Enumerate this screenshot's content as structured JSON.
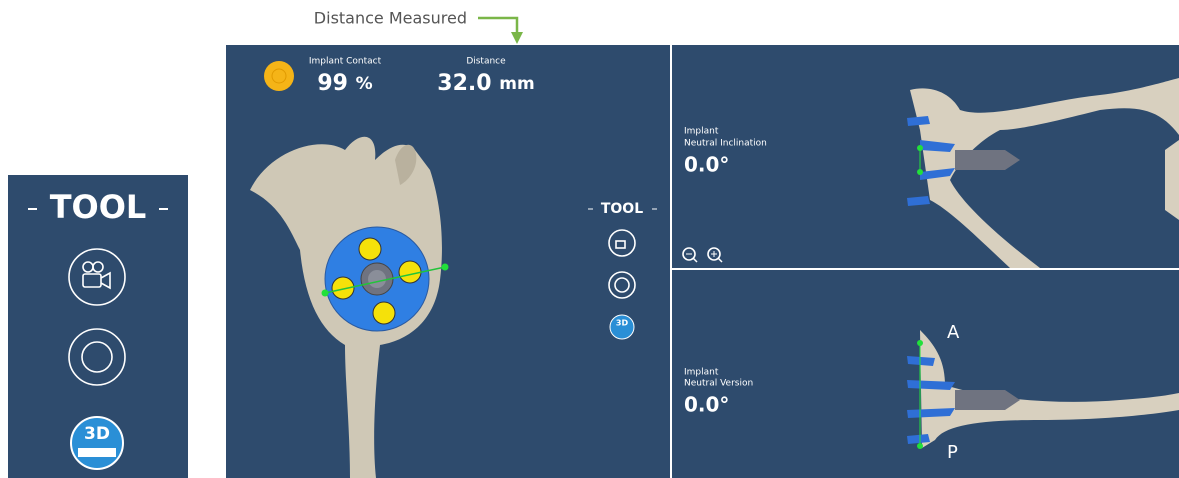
{
  "annotation": {
    "label": "Distance Measured"
  },
  "tool_panel": {
    "title": "TOOL"
  },
  "main_view": {
    "implant_contact": {
      "label": "Implant Contact",
      "value": "99",
      "unit": "%"
    },
    "distance": {
      "label": "Distance",
      "value": "32.0",
      "unit": "mm"
    },
    "tools": {
      "title": "TOOL"
    }
  },
  "inclination_view": {
    "label_line1": "Implant",
    "label_line2": "Neutral Inclination",
    "value": "0.0°"
  },
  "version_view": {
    "label_line1": "Implant",
    "label_line2": "Neutral Version",
    "value": "0.0°",
    "anterior": "A",
    "posterior": "P"
  },
  "icons": {
    "measure_3d": "3D"
  }
}
